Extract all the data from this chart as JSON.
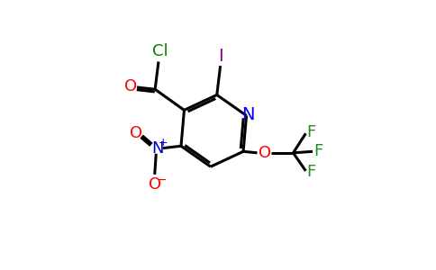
{
  "bg_color": "#ffffff",
  "bond_color": "#000000",
  "bond_width": 2.2,
  "atoms": {
    "N_ring": {
      "color": "#0000ff"
    },
    "N_nitro": {
      "color": "#0000cc"
    },
    "I": {
      "color": "#800080"
    },
    "O": {
      "color": "#ff0000"
    },
    "Cl": {
      "color": "#008000"
    },
    "F": {
      "color": "#228B22"
    },
    "C": {
      "color": "#000000"
    }
  },
  "font_size": 13
}
